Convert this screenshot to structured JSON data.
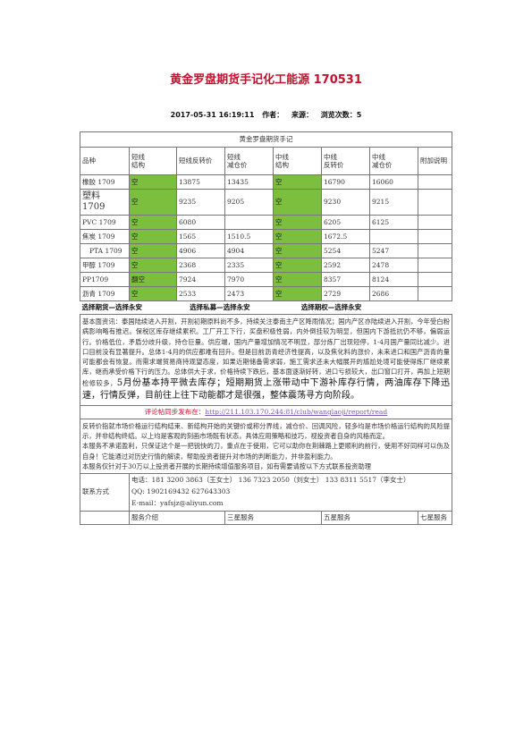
{
  "title": "黄金罗盘期货手记化工能源 170531",
  "meta": {
    "datetime": "2017-05-31 16:19:11",
    "author_label": "作者：",
    "source_label": "来源：",
    "views_label": "浏览次数：5"
  },
  "table_caption": "黄金罗盘期货手记",
  "columns": [
    "品种",
    "短线\n结构",
    "短线反转价",
    "短线\n减仓价",
    "中线\n结构",
    "中线\n反转价",
    "中线\n减仓价",
    "附加说明"
  ],
  "rows": [
    {
      "name": "橡胶 1709",
      "s_struct": "空",
      "s_rev": "13875",
      "s_red": "13435",
      "m_struct": "空",
      "m_rev": "16790",
      "m_red": "16060"
    },
    {
      "name": "塑料\n1709",
      "s_struct": "空",
      "s_rev": "9235",
      "s_red": "9205",
      "m_struct": "空",
      "m_rev": "9230",
      "m_red": "9215"
    },
    {
      "name": "PVC 1709",
      "s_struct": "空",
      "s_rev": "6080",
      "s_red": "",
      "m_struct": "空",
      "m_rev": "6205",
      "m_red": "6125"
    },
    {
      "name": "焦炭 1709",
      "s_struct": "空",
      "s_rev": "1565",
      "s_red": "1510.5",
      "m_struct": "空",
      "m_rev": "1672.5",
      "m_red": ""
    },
    {
      "name": "PTA 1709",
      "s_struct": "空",
      "s_rev": "4906",
      "s_red": "4904",
      "m_struct": "空",
      "m_rev": "5254",
      "m_red": "5247"
    },
    {
      "name": "甲醇 1709",
      "s_struct": "空",
      "s_rev": "2368",
      "s_red": "2335",
      "m_struct": "空",
      "m_rev": "2592",
      "m_red": "2478"
    },
    {
      "name": "PP1709",
      "s_struct": "翻空",
      "s_rev": "7924",
      "s_red": "7970",
      "m_struct": "空",
      "m_rev": "8357",
      "m_red": "8124"
    },
    {
      "name": "沥青 1709",
      "s_struct": "空",
      "s_rev": "2533",
      "s_red": "2473",
      "m_struct": "空",
      "m_rev": "2729",
      "m_red": "2686"
    }
  ],
  "links": [
    "选择期货—选择永安",
    "选择私募—选择永安",
    "选择期权—选择永安"
  ],
  "info": "基本面资讯：泰国陆续进入开割，开割初期原料尚不多，持续关注泰南主产区降雨情况；国内产区亦陆续进入开割，今年受白粉病影响略有推迟。保税区库存继续累积。工厂开工下行，买盘积极性弱，内外倒挂较为明显，但国内下游抵抗仍不够，偏弱运行。价格低位，矛盾分歧升级，持仓巨量。供应端，国内产量增加情况不明显，部分炼厂出现短停，1-4月国产量同比减少。进口目前没有显著提升。总体1-4月的供应都难有回升。但是目前沥青经济性提高，以及焦化料的涨价，未来进口和国产沥青的量可能都会有恢复。而需求端贸易商持观望态度，如果近期储备需求弱，施工需求还未大幅展开的尴尬处境可能使得炼厂继续累库，继而承受价格下行的压力。总体供大于求，价格持续下跌后，基本面逐渐好转，进口亏损较大，出口窗口打开，再加上短期检修较多，",
  "info_big": "5月份基本持平微去库存；短期期货上涨带动中下游补库存行情，两油库存下降迅速，行情反弹，目前往上往下动能都才是很强，整体震荡寻方向阶段。",
  "comment_label": "评论帖同步发布在：",
  "comment_url": "http://211.103.170.244:81/club/wanglaoji/report/read",
  "disclaimer1": "反转价指就市场价格运行结构结束、新结构开始的关键价或称分界线，减仓价、回调风险，轻多均是市场价格运行结构的风险提示，并非结构终结。以上均是客观的刻画市场既有状态，具体应用策略和技巧，视投资者自身的风格而定。",
  "disclaimer2": "本服务不承诺盈利，只保证这个是一把锐快的刀，重点在于使用，它可以助你在荆棘路上更顺利的前行，使用不好同样可以伤及自身！它能通过对历史行情的解读，帮助投资者提升对市场的判断能力，并非盈利能力。",
  "disclaimer3": "本服务仅针对于30万以上投资者开展的长期持续增值服务项目，如有需要请按以下方式联系投资助理",
  "contact": {
    "label": "联系方式",
    "phone": "电话：181 3200 3863（王女士）  136 7323 2050（刘女士）  133 8311 5517（李女士）",
    "qq": "QQ:    1902169432      627643303",
    "email": "E-mail：yafsjz@aliyun.com"
  },
  "services": [
    "服务介绍",
    "三星服务",
    "五星服务",
    "七星服务"
  ]
}
